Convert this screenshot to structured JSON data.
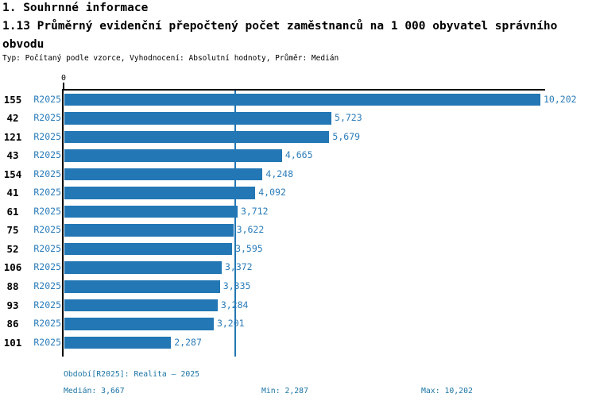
{
  "header": {
    "section_title": "1. Souhrnné informace",
    "indicator_title": "1.13 Průměrný evidenční přepočtený počet zaměstnanců na 1 000 obyvatel správního obvodu",
    "meta": "Typ: Počítaný podle vzorce, Vyhodnocení: Absolutní hodnoty, Průměr: Medián"
  },
  "chart_data": {
    "type": "bar",
    "orientation": "horizontal",
    "title": "1.13 Průměrný evidenční přepočtený počet zaměstnanců na 1 000 obyvatel správního obvodu",
    "x_axis": {
      "zero_label": "0",
      "min": 0,
      "max": 10202,
      "gridlines": false
    },
    "median_value": 3667,
    "period": "R2025",
    "colors": {
      "bar": "#2277B4",
      "median_line": "#2277B4",
      "value_text": "#2B7CB9",
      "category_text": "#000000",
      "footer_text": "#1B74A4"
    },
    "rows": [
      {
        "category": "155",
        "period": "R2025",
        "value": 10202,
        "value_label": "10,202"
      },
      {
        "category": "42",
        "period": "R2025",
        "value": 5723,
        "value_label": "5,723"
      },
      {
        "category": "121",
        "period": "R2025",
        "value": 5679,
        "value_label": "5,679"
      },
      {
        "category": "43",
        "period": "R2025",
        "value": 4665,
        "value_label": "4,665"
      },
      {
        "category": "154",
        "period": "R2025",
        "value": 4248,
        "value_label": "4,248"
      },
      {
        "category": "41",
        "period": "R2025",
        "value": 4092,
        "value_label": "4,092"
      },
      {
        "category": "61",
        "period": "R2025",
        "value": 3712,
        "value_label": "3,712"
      },
      {
        "category": "75",
        "period": "R2025",
        "value": 3622,
        "value_label": "3,622"
      },
      {
        "category": "52",
        "period": "R2025",
        "value": 3595,
        "value_label": "3,595"
      },
      {
        "category": "106",
        "period": "R2025",
        "value": 3372,
        "value_label": "3,372"
      },
      {
        "category": "88",
        "period": "R2025",
        "value": 3335,
        "value_label": "3,335"
      },
      {
        "category": "93",
        "period": "R2025",
        "value": 3284,
        "value_label": "3,284"
      },
      {
        "category": "86",
        "period": "R2025",
        "value": 3201,
        "value_label": "3,201"
      },
      {
        "category": "101",
        "period": "R2025",
        "value": 2287,
        "value_label": "2,287"
      }
    ]
  },
  "footer": {
    "period": "Období[R2025]: Realita – 2025",
    "median": "Medián: 3,667",
    "min": "Min: 2,287",
    "max": "Max: 10,202"
  }
}
